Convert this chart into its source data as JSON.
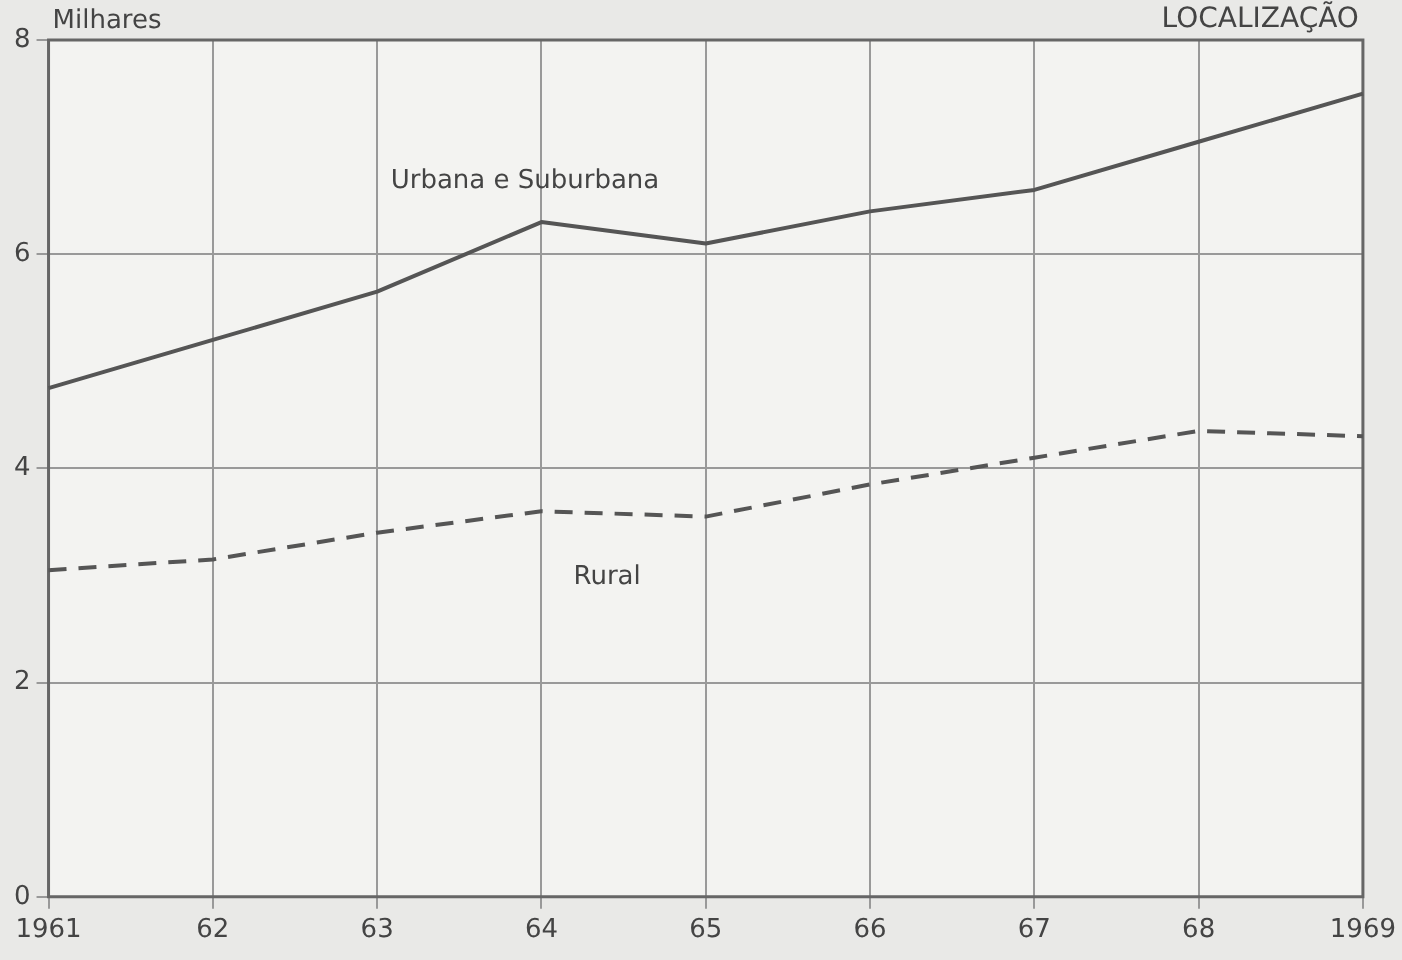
{
  "chart_data": {
    "type": "line",
    "title": "LOCALIZAÇÃO",
    "ylabel": "Milhares",
    "categories": [
      "1961",
      "62",
      "63",
      "64",
      "65",
      "66",
      "67",
      "68",
      "1969"
    ],
    "series": [
      {
        "name": "Urbana e Suburbana",
        "color": "#555555",
        "line_style": "solid",
        "values": [
          4.75,
          5.2,
          5.65,
          6.3,
          6.1,
          6.4,
          6.6,
          7.05,
          7.5
        ]
      },
      {
        "name": "Rural",
        "color": "#555555",
        "line_style": "dashed",
        "values": [
          3.05,
          3.15,
          3.4,
          3.6,
          3.55,
          3.85,
          4.1,
          4.35,
          4.3
        ]
      }
    ],
    "ylim": [
      0,
      8
    ],
    "yticks": [
      0,
      2,
      4,
      6,
      8
    ],
    "grid": true,
    "legend": false,
    "marker": "none"
  }
}
